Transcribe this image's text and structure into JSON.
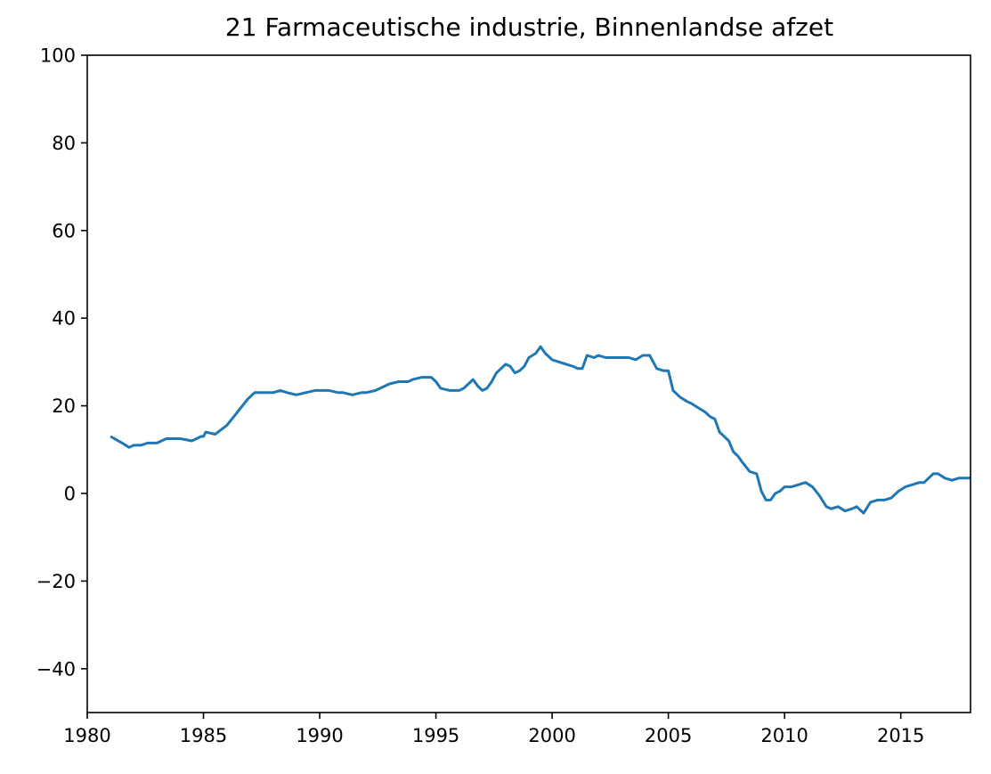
{
  "chart_data": {
    "type": "line",
    "title": "21 Farmaceutische industrie, Binnenlandse afzet",
    "xlabel": "",
    "ylabel": "",
    "xlim": [
      1980,
      2018
    ],
    "ylim": [
      -50,
      100
    ],
    "xticks": [
      1980,
      1985,
      1990,
      1995,
      2000,
      2005,
      2010,
      2015
    ],
    "yticks": [
      100,
      80,
      60,
      40,
      20,
      0,
      -20,
      -40
    ],
    "ytick_labels": [
      "100",
      "80",
      "60",
      "40",
      "20",
      "0",
      "−20",
      "−40"
    ],
    "grid": false,
    "legend": "none",
    "colors": {
      "line": "#1f77b4",
      "axes": "#000000"
    },
    "series": [
      {
        "x": [
          1981.0,
          1981.5,
          1981.8,
          1982.0,
          1982.3,
          1982.6,
          1983.0,
          1983.4,
          1983.8,
          1984.0,
          1984.5,
          1984.9,
          1985.0,
          1985.1,
          1985.5,
          1986.0,
          1986.3,
          1986.6,
          1986.9,
          1987.2,
          1987.6,
          1988.0,
          1988.3,
          1988.6,
          1989.0,
          1989.4,
          1989.8,
          1990.0,
          1990.4,
          1990.8,
          1991.0,
          1991.4,
          1991.8,
          1992.0,
          1992.4,
          1992.8,
          1993.0,
          1993.4,
          1993.8,
          1994.0,
          1994.4,
          1994.8,
          1995.0,
          1995.2,
          1995.6,
          1996.0,
          1996.2,
          1996.4,
          1996.6,
          1996.8,
          1997.0,
          1997.2,
          1997.4,
          1997.6,
          1997.8,
          1998.0,
          1998.2,
          1998.4,
          1998.6,
          1998.8,
          1999.0,
          1999.3,
          1999.5,
          1999.7,
          2000.0,
          2000.3,
          2000.6,
          2000.9,
          2001.1,
          2001.3,
          2001.5,
          2001.8,
          2002.0,
          2002.3,
          2002.6,
          2003.0,
          2003.3,
          2003.6,
          2003.9,
          2004.2,
          2004.5,
          2004.8,
          2005.0,
          2005.2,
          2005.5,
          2005.8,
          2006.0,
          2006.3,
          2006.6,
          2006.8,
          2007.0,
          2007.2,
          2007.4,
          2007.6,
          2007.8,
          2008.0,
          2008.2,
          2008.5,
          2008.8,
          2009.0,
          2009.2,
          2009.4,
          2009.6,
          2009.8,
          2010.0,
          2010.3,
          2010.6,
          2010.9,
          2011.2,
          2011.5,
          2011.8,
          2012.0,
          2012.3,
          2012.6,
          2012.9,
          2013.1,
          2013.4,
          2013.7,
          2014.0,
          2014.3,
          2014.6,
          2014.9,
          2015.2,
          2015.5,
          2015.8,
          2016.0,
          2016.2,
          2016.4,
          2016.6,
          2016.9,
          2017.2,
          2017.5,
          2017.8,
          2018.0
        ],
        "y": [
          13.0,
          11.5,
          10.5,
          11.0,
          11.0,
          11.5,
          11.5,
          12.5,
          12.5,
          12.5,
          12.0,
          13.0,
          13.0,
          14.0,
          13.5,
          15.5,
          17.5,
          19.5,
          21.5,
          23.0,
          23.0,
          23.0,
          23.5,
          23.0,
          22.5,
          23.0,
          23.5,
          23.5,
          23.5,
          23.0,
          23.0,
          22.5,
          23.0,
          23.0,
          23.5,
          24.5,
          25.0,
          25.5,
          25.5,
          26.0,
          26.5,
          26.5,
          25.5,
          24.0,
          23.5,
          23.5,
          24.0,
          25.0,
          26.0,
          24.5,
          23.5,
          24.0,
          25.5,
          27.5,
          28.5,
          29.5,
          29.0,
          27.5,
          28.0,
          29.0,
          31.0,
          32.0,
          33.5,
          32.0,
          30.5,
          30.0,
          29.5,
          29.0,
          28.5,
          28.5,
          31.5,
          31.0,
          31.5,
          31.0,
          31.0,
          31.0,
          31.0,
          30.5,
          31.5,
          31.5,
          28.5,
          28.0,
          28.0,
          23.5,
          22.0,
          21.0,
          20.5,
          19.5,
          18.5,
          17.5,
          17.0,
          14.0,
          13.0,
          12.0,
          9.5,
          8.5,
          7.0,
          5.0,
          4.5,
          0.5,
          -1.5,
          -1.5,
          0.0,
          0.5,
          1.5,
          1.5,
          2.0,
          2.5,
          1.5,
          -0.5,
          -3.0,
          -3.5,
          -3.0,
          -4.0,
          -3.5,
          -3.0,
          -4.5,
          -2.0,
          -1.5,
          -1.5,
          -1.0,
          0.5,
          1.5,
          2.0,
          2.5,
          2.5,
          3.5,
          4.5,
          4.5,
          3.5,
          3.0,
          3.5,
          3.5,
          3.5
        ]
      }
    ]
  }
}
